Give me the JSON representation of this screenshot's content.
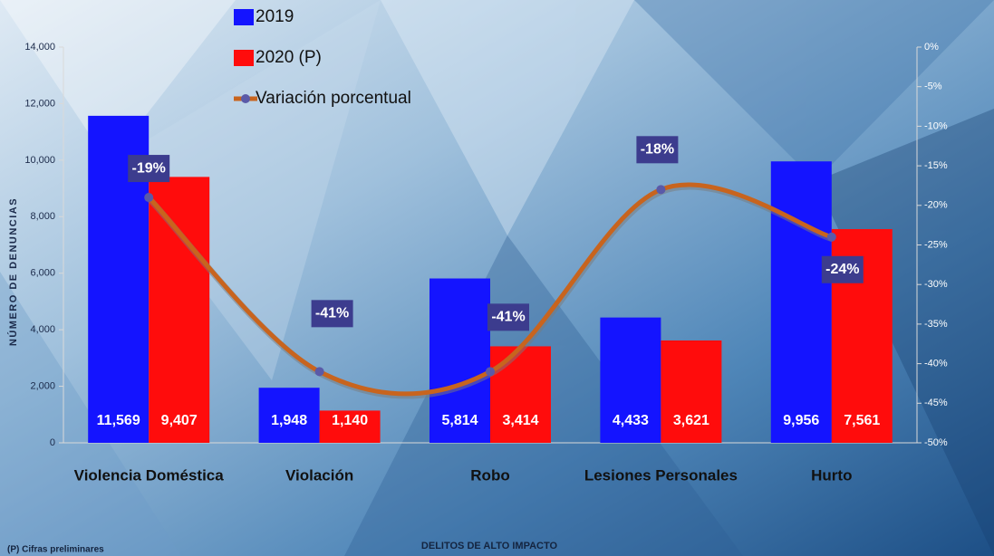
{
  "chart_data": {
    "type": "bar",
    "categories": [
      "Violencia Doméstica",
      "Violación",
      "Robo",
      "Lesiones Personales",
      "Hurto"
    ],
    "series": [
      {
        "name": "2019",
        "color": "#1414ff",
        "values": [
          11569,
          1948,
          5814,
          4433,
          9956
        ],
        "value_labels": [
          "11,569",
          "1,948",
          "5,814",
          "4,433",
          "9,956"
        ]
      },
      {
        "name": "2020 (P)",
        "color": "#ff0c0c",
        "values": [
          9407,
          1140,
          3414,
          3621,
          7561
        ],
        "value_labels": [
          "9,407",
          "1,140",
          "3,414",
          "3,621",
          "7,561"
        ]
      },
      {
        "name": "Variación porcentual",
        "type": "line",
        "axis": "y2",
        "color": "#c8641e",
        "marker_color": "#5a5aa8",
        "values": [
          -19,
          -41,
          -41,
          -18,
          -24
        ],
        "value_labels": [
          "-19%",
          "-41%",
          "-41%",
          "-18%",
          "-24%"
        ]
      }
    ],
    "ylim": [
      0,
      14000
    ],
    "yticks": [
      0,
      {
        "value": 2000,
        "label": "2,000"
      },
      {
        "value": 4000,
        "label": "4,000"
      },
      {
        "value": 6000,
        "label": "6,000"
      },
      {
        "value": 8000,
        "label": "8,000"
      },
      {
        "value": 10000,
        "label": "10,000"
      },
      {
        "value": 12000,
        "label": "12,000"
      },
      {
        "value": 14000,
        "label": "14,000"
      }
    ],
    "y2lim": [
      -50,
      0
    ],
    "y2ticks": [
      {
        "value": 0,
        "label": "0%"
      },
      {
        "value": -5,
        "label": "-5%"
      },
      {
        "value": -10,
        "label": "-10%"
      },
      {
        "value": -15,
        "label": "-15%"
      },
      {
        "value": -20,
        "label": "-20%"
      },
      {
        "value": -25,
        "label": "-25%"
      },
      {
        "value": -30,
        "label": "-30%"
      },
      {
        "value": -35,
        "label": "-35%"
      },
      {
        "value": -40,
        "label": "-40%"
      },
      {
        "value": -45,
        "label": "-45%"
      },
      {
        "value": -50,
        "label": "-50%"
      }
    ],
    "y_label": "NÚMERO DE DENUNCIAS",
    "x_label": "DELITOS DE ALTO IMPACTO",
    "note": "(P) Cifras preliminares",
    "grid": false
  }
}
